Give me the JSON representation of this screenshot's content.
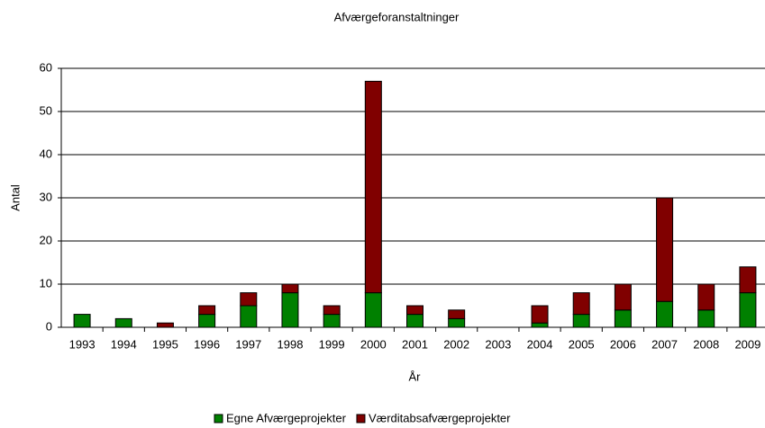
{
  "chart_data": {
    "type": "stacked_bar",
    "title": "Afværgeforanstaltninger",
    "x_label": "År",
    "y_label": "Antal",
    "categories": [
      "1993",
      "1994",
      "1995",
      "1996",
      "1997",
      "1998",
      "1999",
      "2000",
      "2001",
      "2002",
      "2003",
      "2004",
      "2005",
      "2006",
      "2007",
      "2008",
      "2009"
    ],
    "series": [
      {
        "name": "Egne Afværgeprojekter",
        "color": "#008000",
        "values": [
          3,
          2,
          0,
          3,
          5,
          8,
          3,
          8,
          3,
          2,
          0,
          1,
          3,
          4,
          6,
          4,
          8
        ]
      },
      {
        "name": "Værditabsafværgeprojekter",
        "color": "#800000",
        "values": [
          0,
          0,
          1,
          2,
          3,
          2,
          2,
          49,
          2,
          2,
          0,
          4,
          5,
          6,
          24,
          6,
          6
        ]
      }
    ],
    "ylim": [
      0,
      60
    ],
    "yticks": [
      0,
      10,
      20,
      30,
      40,
      50,
      60
    ],
    "grid": true,
    "legend": "bottom"
  }
}
